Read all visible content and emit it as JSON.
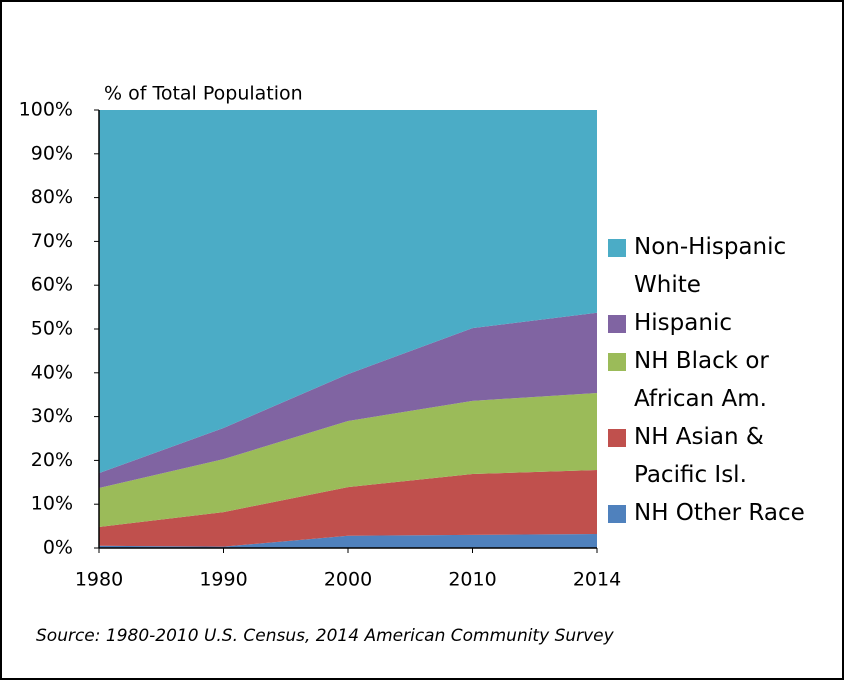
{
  "chart_data": {
    "type": "area",
    "y_label": "% of Total Population",
    "source": "Source: 1980-2010 U.S. Census, 2014 American Community Survey",
    "categories": [
      "1980",
      "1990",
      "2000",
      "2010",
      "2014"
    ],
    "stacked": true,
    "ylim": [
      0,
      100
    ],
    "yticks": [
      {
        "value": 0,
        "label": "0%"
      },
      {
        "value": 10,
        "label": "10%"
      },
      {
        "value": 20,
        "label": "20%"
      },
      {
        "value": 30,
        "label": "30%"
      },
      {
        "value": 40,
        "label": "40%"
      },
      {
        "value": 50,
        "label": "50%"
      },
      {
        "value": 60,
        "label": "60%"
      },
      {
        "value": 70,
        "label": "70%"
      },
      {
        "value": 80,
        "label": "80%"
      },
      {
        "value": 90,
        "label": "90%"
      },
      {
        "value": 100,
        "label": "100%"
      }
    ],
    "grid": false,
    "legend": "right",
    "series": [
      {
        "name": "NH Other Race",
        "color": "#4f81bd",
        "values": [
          0.5,
          0.3,
          2.8,
          3.0,
          3.2
        ]
      },
      {
        "name": "NH Asian & Pacific Isl.",
        "color": "#c0504d",
        "values": [
          4.3,
          7.9,
          11.1,
          13.9,
          14.6
        ]
      },
      {
        "name": "NH Black or African Am.",
        "color": "#9bbb59",
        "values": [
          8.9,
          12.1,
          15.1,
          16.7,
          17.6
        ]
      },
      {
        "name": "Hispanic",
        "color": "#8064a2",
        "values": [
          3.4,
          7.1,
          10.7,
          16.6,
          18.3
        ]
      },
      {
        "name": "Non-Hispanic White",
        "color": "#4bacc6",
        "values": [
          82.9,
          72.6,
          60.3,
          49.8,
          46.3
        ]
      }
    ]
  }
}
